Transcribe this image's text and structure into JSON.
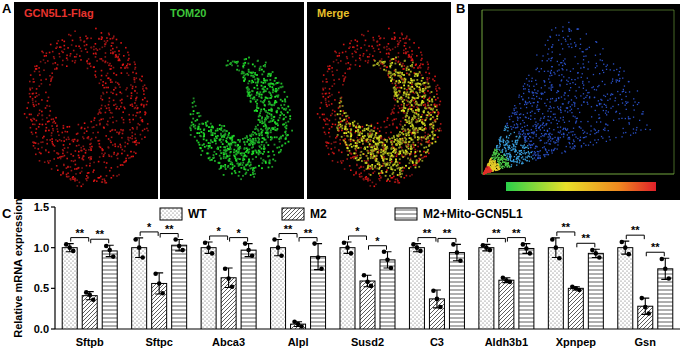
{
  "figure": {
    "panel_labels": [
      "A",
      "B",
      "C"
    ],
    "image_titles": [
      "GCN5L1-Flag",
      "TOM20",
      "Merge"
    ]
  },
  "chart_data": {
    "type": "bar",
    "y_label": "Relative mRNA expression",
    "categories": [
      "Sftpb",
      "Sftpc",
      "Abca3",
      "Alpl",
      "Susd2",
      "C3",
      "Aldh3b1",
      "Xpnpep",
      "Gsn"
    ],
    "series": [
      {
        "name": "WT",
        "color": "#ffffff",
        "values": [
          1.0,
          1.0,
          1.0,
          1.0,
          1.0,
          1.0,
          1.0,
          1.0,
          1.0
        ],
        "errors": [
          0.05,
          0.12,
          0.07,
          0.1,
          0.07,
          0.05,
          0.04,
          0.12,
          0.08
        ],
        "points": [
          [
            1.04,
            0.96,
            1.0
          ],
          [
            1.1,
            0.88,
            1.0
          ],
          [
            1.06,
            0.93,
            1.0
          ],
          [
            1.1,
            0.9,
            1.0
          ],
          [
            1.06,
            0.93,
            1.0
          ],
          [
            1.04,
            0.96,
            1.0
          ],
          [
            1.03,
            0.97,
            1.0
          ],
          [
            1.1,
            0.87,
            1.0
          ],
          [
            1.07,
            0.92,
            1.0
          ]
        ]
      },
      {
        "name": "M2",
        "color": "#ffffff",
        "values": [
          0.41,
          0.56,
          0.63,
          0.06,
          0.59,
          0.37,
          0.6,
          0.5,
          0.28
        ],
        "errors": [
          0.05,
          0.13,
          0.12,
          0.03,
          0.07,
          0.11,
          0.03,
          0.02,
          0.1
        ],
        "points": [
          [
            0.45,
            0.36,
            0.42
          ],
          [
            0.68,
            0.44,
            0.56
          ],
          [
            0.74,
            0.52,
            0.62
          ],
          [
            0.09,
            0.03,
            0.06
          ],
          [
            0.66,
            0.53,
            0.58
          ],
          [
            0.47,
            0.27,
            0.37
          ],
          [
            0.63,
            0.58,
            0.6
          ],
          [
            0.52,
            0.48,
            0.5
          ],
          [
            0.38,
            0.19,
            0.27
          ]
        ]
      },
      {
        "name": "M2+Mito-GCN5L1",
        "color": "#ffffff",
        "values": [
          0.96,
          1.03,
          0.97,
          0.89,
          0.85,
          0.94,
          0.99,
          0.93,
          0.74
        ],
        "errors": [
          0.07,
          0.07,
          0.08,
          0.16,
          0.1,
          0.1,
          0.06,
          0.05,
          0.13
        ],
        "points": [
          [
            1.02,
            0.89,
            0.97
          ],
          [
            1.1,
            0.97,
            1.02
          ],
          [
            1.05,
            0.9,
            0.97
          ],
          [
            1.05,
            0.74,
            0.88
          ],
          [
            0.95,
            0.75,
            0.85
          ],
          [
            1.04,
            0.84,
            0.94
          ],
          [
            1.04,
            0.93,
            0.99
          ],
          [
            0.97,
            0.88,
            0.93
          ],
          [
            0.86,
            0.62,
            0.74
          ]
        ]
      }
    ],
    "ylim": [
      0,
      1.5
    ],
    "yticks": [
      {
        "value": 0,
        "label": "0.0"
      },
      {
        "value": 0.5,
        "label": "0.5"
      },
      {
        "value": 1,
        "label": "1.0"
      },
      {
        "value": 1.5,
        "label": "1.5"
      }
    ],
    "grid": false,
    "legend": "top",
    "annotations": [
      {
        "text": "**",
        "category": "Sftpb",
        "between": [
          "WT",
          "M2"
        ]
      },
      {
        "text": "**",
        "category": "Sftpb",
        "between": [
          "M2",
          "M2+Mito-GCN5L1"
        ]
      },
      {
        "text": "*",
        "category": "Sftpc",
        "between": [
          "WT",
          "M2"
        ]
      },
      {
        "text": "**",
        "category": "Sftpc",
        "between": [
          "M2",
          "M2+Mito-GCN5L1"
        ]
      },
      {
        "text": "*",
        "category": "Abca3",
        "between": [
          "WT",
          "M2"
        ]
      },
      {
        "text": "*",
        "category": "Abca3",
        "between": [
          "M2",
          "M2+Mito-GCN5L1"
        ]
      },
      {
        "text": "**",
        "category": "Alpl",
        "between": [
          "WT",
          "M2"
        ]
      },
      {
        "text": "**",
        "category": "Alpl",
        "between": [
          "M2",
          "M2+Mito-GCN5L1"
        ]
      },
      {
        "text": "*",
        "category": "Susd2",
        "between": [
          "WT",
          "M2"
        ]
      },
      {
        "text": "*",
        "category": "Susd2",
        "between": [
          "M2",
          "M2+Mito-GCN5L1"
        ]
      },
      {
        "text": "**",
        "category": "C3",
        "between": [
          "WT",
          "M2"
        ]
      },
      {
        "text": "**",
        "category": "C3",
        "between": [
          "M2",
          "M2+Mito-GCN5L1"
        ]
      },
      {
        "text": "**",
        "category": "Aldh3b1",
        "between": [
          "WT",
          "M2"
        ]
      },
      {
        "text": "**",
        "category": "Aldh3b1",
        "between": [
          "M2",
          "M2+Mito-GCN5L1"
        ]
      },
      {
        "text": "**",
        "category": "Xpnpep",
        "between": [
          "WT",
          "M2"
        ]
      },
      {
        "text": "**",
        "category": "Xpnpep",
        "between": [
          "M2",
          "M2+Mito-GCN5L1"
        ]
      },
      {
        "text": "**",
        "category": "Gsn",
        "between": [
          "WT",
          "M2"
        ]
      },
      {
        "text": "**",
        "category": "Gsn",
        "between": [
          "M2",
          "M2+Mito-GCN5L1"
        ]
      }
    ]
  }
}
